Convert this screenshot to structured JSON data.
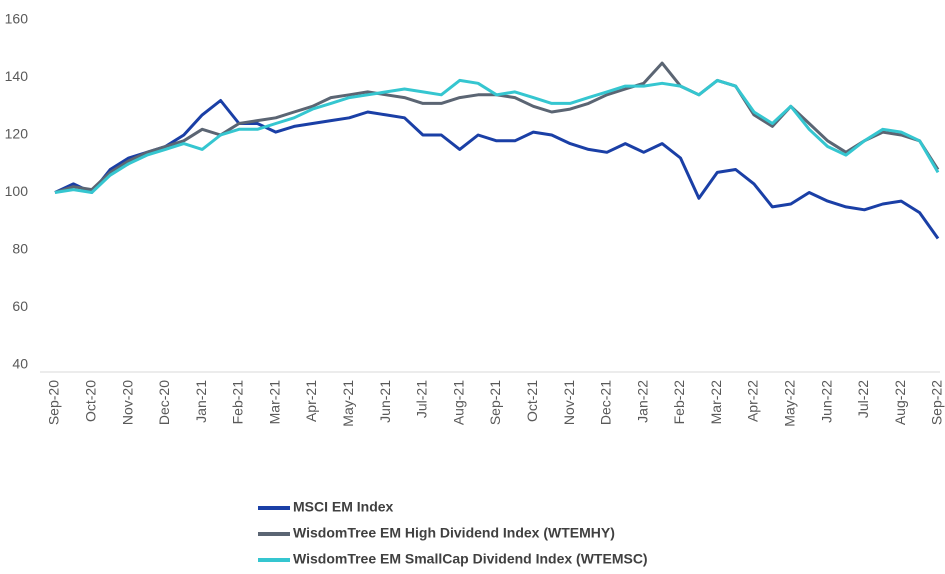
{
  "chart_data": {
    "type": "line",
    "categories": [
      "Sep-20",
      null,
      "Oct-20",
      null,
      "Nov-20",
      null,
      "Dec-20",
      null,
      "Jan-21",
      null,
      "Feb-21",
      null,
      "Mar-21",
      null,
      "Apr-21",
      null,
      "May-21",
      null,
      "Jun-21",
      null,
      "Jul-21",
      null,
      "Aug-21",
      null,
      "Sep-21",
      null,
      "Oct-21",
      null,
      "Nov-21",
      null,
      "Dec-21",
      null,
      "Jan-22",
      null,
      "Feb-22",
      null,
      "Mar-22",
      null,
      "Apr-22",
      null,
      "May-22",
      null,
      "Jun-22",
      null,
      "Jul-22",
      null,
      "Aug-22",
      null,
      "Sep-22"
    ],
    "series": [
      {
        "name": "MSCI EM Index",
        "color": "#1a3fa6",
        "values": [
          100,
          103,
          100,
          108,
          112,
          114,
          116,
          120,
          127,
          132,
          124,
          124,
          121,
          123,
          124,
          125,
          126,
          128,
          127,
          126,
          120,
          120,
          115,
          120,
          118,
          118,
          121,
          120,
          117,
          115,
          114,
          117,
          114,
          117,
          112,
          98,
          107,
          108,
          103,
          95,
          96,
          100,
          97,
          95,
          94,
          96,
          97,
          93,
          84
        ]
      },
      {
        "name": "WisdomTree EM High Dividend Index (WTEMHY)",
        "color": "#5b6573",
        "values": [
          100,
          102,
          101,
          107,
          111,
          114,
          116,
          118,
          122,
          120,
          124,
          125,
          126,
          128,
          130,
          133,
          134,
          135,
          134,
          133,
          131,
          131,
          133,
          134,
          134,
          133,
          130,
          128,
          129,
          131,
          134,
          136,
          138,
          145,
          137,
          134,
          139,
          137,
          127,
          123,
          130,
          124,
          118,
          114,
          118,
          121,
          120,
          118,
          108
        ]
      },
      {
        "name": "WisdomTree EM SmallCap Dividend Index (WTEMSC)",
        "color": "#35c6d0",
        "values": [
          100,
          101,
          100,
          106,
          110,
          113,
          115,
          117,
          115,
          120,
          122,
          122,
          124,
          126,
          129,
          131,
          133,
          134,
          135,
          136,
          135,
          134,
          139,
          138,
          134,
          135,
          133,
          131,
          131,
          133,
          135,
          137,
          137,
          138,
          137,
          134,
          139,
          137,
          128,
          124,
          130,
          122,
          116,
          113,
          118,
          122,
          121,
          118,
          107
        ]
      }
    ],
    "ylim": [
      40,
      160
    ],
    "yticks": [
      40,
      60,
      80,
      100,
      120,
      140,
      160
    ],
    "grid": false,
    "legend": "bottom"
  }
}
